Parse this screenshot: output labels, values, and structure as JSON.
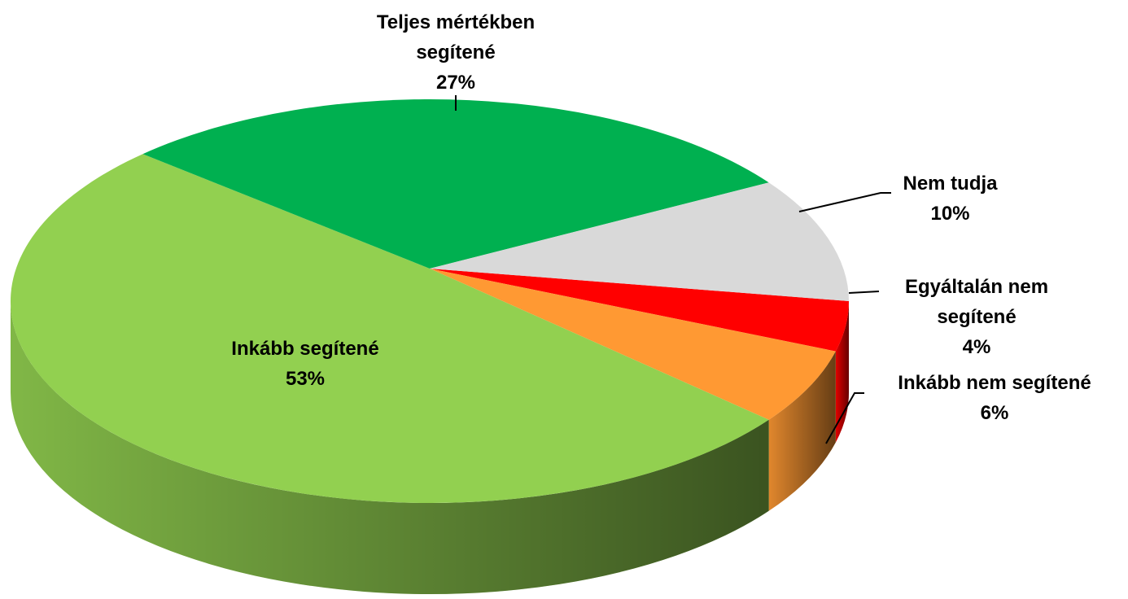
{
  "chart_data": {
    "type": "pie",
    "categories": [
      "Egyáltalán nem segítené",
      "Inkább nem segítené",
      "Inkább segítené",
      "Teljes mértékben segítené",
      "Nem tudja"
    ],
    "values": [
      4,
      6,
      53,
      27,
      10
    ],
    "value_labels": [
      "4%",
      "6%",
      "53%",
      "27%",
      "10%"
    ],
    "colors": [
      "#ff0000",
      "#ff9933",
      "#92d050",
      "#00b050",
      "#d9d9d9"
    ]
  }
}
